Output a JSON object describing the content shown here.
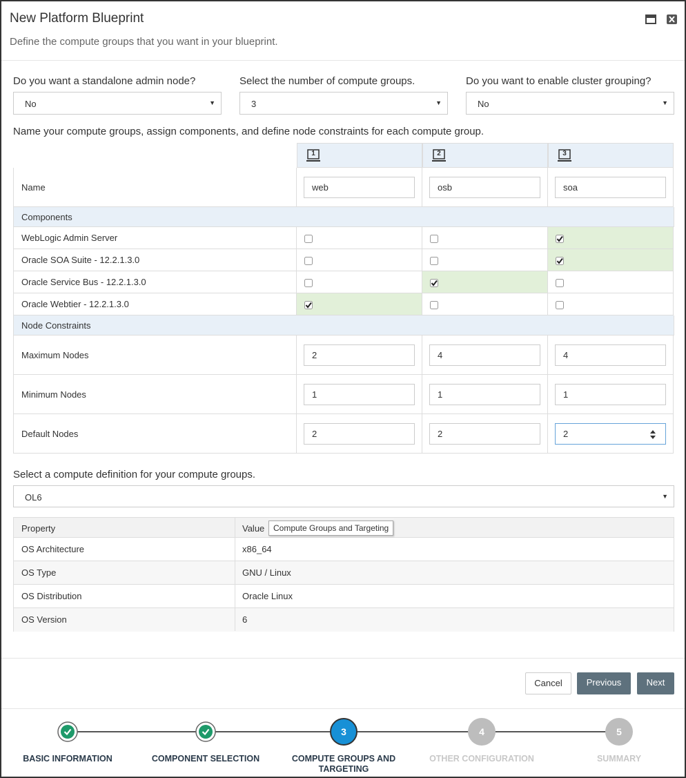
{
  "dialog": {
    "title": "New Platform Blueprint",
    "subtitle": "Define the compute groups that you want in your blueprint."
  },
  "selects": [
    {
      "label": "Do you want a standalone admin node?",
      "value": "No"
    },
    {
      "label": "Select the number of compute groups.",
      "value": "3"
    },
    {
      "label": "Do you want to enable cluster grouping?",
      "value": "No"
    }
  ],
  "groups_prompt": "Name your compute groups, assign components, and define node constraints for each compute group.",
  "group_table": {
    "columns": [
      "1",
      "2",
      "3"
    ],
    "name_label": "Name",
    "names": [
      "web",
      "osb",
      "soa"
    ],
    "components_header": "Components",
    "components": [
      {
        "label": "WebLogic Admin Server",
        "checked": [
          false,
          false,
          true
        ]
      },
      {
        "label": "Oracle SOA Suite - 12.2.1.3.0",
        "checked": [
          false,
          false,
          true
        ]
      },
      {
        "label": "Oracle Service Bus - 12.2.1.3.0",
        "checked": [
          false,
          true,
          false
        ]
      },
      {
        "label": "Oracle Webtier - 12.2.1.3.0",
        "checked": [
          true,
          false,
          false
        ]
      }
    ],
    "constraints_header": "Node Constraints",
    "constraints": [
      {
        "label": "Maximum Nodes",
        "values": [
          2,
          4,
          4
        ]
      },
      {
        "label": "Minimum Nodes",
        "values": [
          1,
          1,
          1
        ]
      },
      {
        "label": "Default Nodes",
        "values": [
          2,
          2,
          2
        ]
      }
    ]
  },
  "compute_prompt": "Select a compute definition for your compute groups.",
  "compute_select": "OL6",
  "property_table": {
    "headers": [
      "Property",
      "Value"
    ],
    "rows": [
      [
        "OS Architecture",
        "x86_64"
      ],
      [
        "OS Type",
        "GNU / Linux"
      ],
      [
        "OS Distribution",
        "Oracle Linux"
      ],
      [
        "OS Version",
        "6"
      ]
    ]
  },
  "tooltip": "Compute Groups and Targeting",
  "buttons": [
    "Cancel",
    "Previous",
    "Next"
  ],
  "steps": [
    {
      "label": "BASIC INFORMATION",
      "state": "done"
    },
    {
      "label": "COMPONENT SELECTION",
      "state": "done"
    },
    {
      "number": "3",
      "label": "COMPUTE GROUPS AND TARGETING",
      "state": "active"
    },
    {
      "number": "4",
      "label": "OTHER CONFIGURATION",
      "state": "future"
    },
    {
      "number": "5",
      "label": "SUMMARY",
      "state": "future"
    }
  ]
}
